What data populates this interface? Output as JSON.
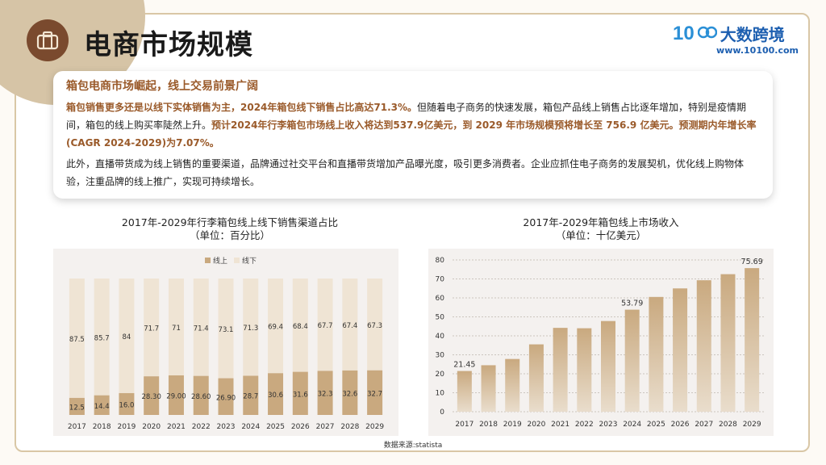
{
  "header": {
    "title": "电商市场规模",
    "logo_text": "大数跨境",
    "logo_mark": "10",
    "logo_url": "www.10100.com"
  },
  "card": {
    "heading": "箱包电商市场崛起，线上交易前景广阔",
    "p1_a": "箱包销售更多还是以线下实体销售为主，2024年箱包线下销售占比高达71.3%。",
    "p1_b": "但随着电子商务的快速发展，箱包产品线上销售占比逐年增加，特别是疫情期间，箱包的线上购买率陡然上升。",
    "p1_c": "预计2024年行李箱包市场线上收入将达到537.9亿美元，到 2029 年市场规模预将增长至 756.9 亿美元。预测期内年增长率(CAGR 2024-2029)为7.07%。",
    "p2": "此外，直播带货成为线上销售的重要渠道，品牌通过社交平台和直播带货增加产品曝光度，吸引更多消费者。企业应抓住电子商务的发展契机，优化线上购物体验，注重品牌的线上推广，实现可持续增长。"
  },
  "source": "数据来源:statista",
  "colors": {
    "online": "#c9a97f",
    "offline": "#efe4d4",
    "accent": "#9a5a2a",
    "panel": "#f4f1ef"
  },
  "chart_data": [
    {
      "type": "bar",
      "stacked": true,
      "title": "2017年-2029年行李箱包线上线下销售渠道占比",
      "subtitle": "（单位：百分比）",
      "categories": [
        "2017",
        "2018",
        "2019",
        "2020",
        "2021",
        "2022",
        "2023",
        "2024",
        "2025",
        "2026",
        "2027",
        "2028",
        "2029"
      ],
      "series": [
        {
          "name": "线上",
          "values": [
            12.5,
            14.4,
            16.0,
            28.3,
            29.0,
            28.6,
            26.9,
            28.7,
            30.6,
            31.6,
            32.3,
            32.6,
            32.7
          ],
          "labels": [
            "12.5",
            "14.4",
            "16.0",
            "28.30",
            "29.00",
            "28.60",
            "26.90",
            "28.7",
            "30.6",
            "31.6",
            "32.3",
            "32.6",
            "32.7"
          ]
        },
        {
          "name": "线下",
          "values": [
            87.5,
            85.7,
            84,
            71.7,
            71,
            71.4,
            73.1,
            71.3,
            69.4,
            68.4,
            67.7,
            67.4,
            67.3
          ],
          "labels": [
            "87.5",
            "85.7",
            "84",
            "71.7",
            "71",
            "71.4",
            "73.1",
            "71.3",
            "69.4",
            "68.4",
            "67.7",
            "67.4",
            "67.3"
          ]
        }
      ],
      "ylim": [
        0,
        100
      ],
      "legend": "top-center"
    },
    {
      "type": "bar",
      "title": "2017年-2029年箱包线上市场收入",
      "subtitle": "（单位：十亿美元）",
      "categories": [
        "2017",
        "2018",
        "2019",
        "2020",
        "2021",
        "2022",
        "2023",
        "2024",
        "2025",
        "2026",
        "2027",
        "2028",
        "2029"
      ],
      "values": [
        21.45,
        24.5,
        27.8,
        35.5,
        44.2,
        44.0,
        47.8,
        53.79,
        60.5,
        65.0,
        69.3,
        72.5,
        75.69
      ],
      "data_labels": {
        "0": "21.45",
        "7": "53.79",
        "12": "75.69"
      },
      "yticks": [
        "0",
        "10",
        "20",
        "30",
        "40",
        "50",
        "60",
        "70",
        "80"
      ],
      "ylim": [
        0,
        80
      ],
      "grid": true
    }
  ]
}
